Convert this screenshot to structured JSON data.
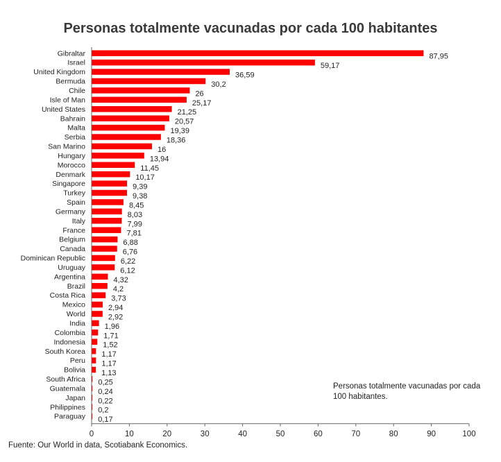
{
  "chart_data": {
    "type": "bar",
    "orientation": "horizontal",
    "title": "Personas totalmente vacunadas por cada 100 habitantes",
    "categories": [
      "Gibraltar",
      "Israel",
      "United Kingdom",
      "Bermuda",
      "Chile",
      "Isle of Man",
      "United States",
      "Bahrain",
      "Malta",
      "Serbia",
      "San Marino",
      "Hungary",
      "Morocco",
      "Denmark",
      "Singapore",
      "Turkey",
      "Spain",
      "Germany",
      "Italy",
      "France",
      "Belgium",
      "Canada",
      "Dominican Republic",
      "Uruguay",
      "Argentina",
      "Brazil",
      "Costa Rica",
      "Mexico",
      "World",
      "India",
      "Colombia",
      "Indonesia",
      "South Korea",
      "Peru",
      "Bolivia",
      "South Africa",
      "Guatemala",
      "Japan",
      "Philippines",
      "Paraguay"
    ],
    "values": [
      87.95,
      59.17,
      36.59,
      30.2,
      26,
      25.17,
      21.25,
      20.57,
      19.39,
      18.36,
      16,
      13.94,
      11.45,
      10.17,
      9.39,
      9.38,
      8.45,
      8.03,
      7.99,
      7.81,
      6.88,
      6.76,
      6.22,
      6.12,
      4.32,
      4.2,
      3.73,
      2.94,
      2.92,
      1.96,
      1.71,
      1.52,
      1.17,
      1.17,
      1.13,
      0.25,
      0.24,
      0.22,
      0.2,
      0.17
    ],
    "value_labels": [
      "87,95",
      "59,17",
      "36,59",
      "30,2",
      "26",
      "25,17",
      "21,25",
      "20,57",
      "19,39",
      "18,36",
      "16",
      "13,94",
      "11,45",
      "10,17",
      "9,39",
      "9,38",
      "8,45",
      "8,03",
      "7,99",
      "7,81",
      "6,88",
      "6,76",
      "6,22",
      "6,12",
      "4,32",
      "4,2",
      "3,73",
      "2,94",
      "2,92",
      "1,96",
      "1,71",
      "1,52",
      "1,17",
      "1,17",
      "1,13",
      "0,25",
      "0,24",
      "0,22",
      "0,2",
      "0,17"
    ],
    "xlim": [
      0,
      100
    ],
    "xticks": [
      0,
      10,
      20,
      30,
      40,
      50,
      60,
      70,
      80,
      90,
      100
    ],
    "series_color": "#ff0000",
    "legend": {
      "label": "Personas totalmente vacunadas por cada 100 habitantes.",
      "placement": "bottom-right"
    },
    "grid": false
  },
  "legend_note": "Personas totalmente vacunadas por cada 100 habitantes.",
  "source": "Fuente: Our World in data, Scotiabank Economics."
}
